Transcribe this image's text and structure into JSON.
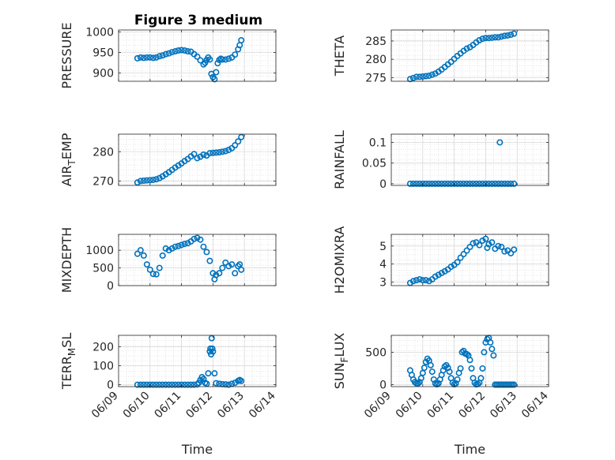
{
  "figure_title": "Figure 3 medium",
  "chart_data": [
    {
      "type": "scatter",
      "title": "Figure 3 medium",
      "ylabel": "PRESSURE",
      "ylabel_sub": "",
      "ylabel_tail": "",
      "xlim": [
        0,
        5
      ],
      "ylim": [
        880,
        1005
      ],
      "yticks": [
        900,
        950,
        1000
      ],
      "ytick_labels": [
        "900",
        "950",
        "1000"
      ],
      "xtick_labels": [],
      "xlabel": "",
      "grid": true,
      "series": [
        {
          "x": [
            0.6,
            0.7,
            0.8,
            0.9,
            1.0,
            1.1,
            1.2,
            1.3,
            1.4,
            1.5,
            1.6,
            1.7,
            1.8,
            1.9,
            2.0,
            2.1,
            2.2,
            2.3,
            2.4,
            2.5,
            2.6,
            2.7,
            2.75,
            2.8,
            2.85,
            2.9,
            2.95,
            3.0,
            3.05,
            3.1,
            3.15,
            3.2,
            3.25,
            3.3,
            3.4,
            3.5,
            3.6,
            3.7,
            3.8,
            3.85,
            3.9
          ],
          "y": [
            936,
            938,
            937,
            938,
            938,
            937,
            938,
            941,
            943,
            946,
            948,
            951,
            953,
            955,
            956,
            955,
            953,
            952,
            946,
            940,
            931,
            921,
            925,
            932,
            938,
            933,
            898,
            890,
            885,
            902,
            924,
            932,
            935,
            933,
            933,
            935,
            938,
            945,
            958,
            968,
            980
          ]
        }
      ]
    },
    {
      "type": "scatter",
      "ylabel": "THETA",
      "ylabel_sub": "",
      "ylabel_tail": "",
      "xlim": [
        0,
        5
      ],
      "ylim": [
        274,
        288
      ],
      "yticks": [
        275,
        280,
        285
      ],
      "ytick_labels": [
        "275",
        "280",
        "285"
      ],
      "xtick_labels": [],
      "xlabel": "",
      "grid": true,
      "series": [
        {
          "x": [
            0.6,
            0.7,
            0.8,
            0.9,
            1.0,
            1.1,
            1.2,
            1.3,
            1.4,
            1.5,
            1.6,
            1.7,
            1.8,
            1.9,
            2.0,
            2.1,
            2.2,
            2.3,
            2.4,
            2.5,
            2.6,
            2.7,
            2.8,
            2.9,
            3.0,
            3.1,
            3.2,
            3.3,
            3.4,
            3.5,
            3.6,
            3.7,
            3.8,
            3.9
          ],
          "y": [
            274.6,
            274.9,
            275.2,
            275.2,
            275.3,
            275.4,
            275.5,
            275.8,
            276.1,
            276.6,
            277.2,
            277.9,
            278.6,
            279.3,
            280.1,
            280.9,
            281.6,
            282.3,
            282.9,
            283.3,
            283.9,
            284.6,
            285.2,
            285.6,
            285.8,
            285.8,
            285.9,
            286.0,
            286.0,
            286.2,
            286.4,
            286.5,
            286.7,
            287.0
          ]
        }
      ]
    },
    {
      "type": "scatter",
      "ylabel": "AIR",
      "ylabel_sub": "T",
      "ylabel_tail": "EMP",
      "xlim": [
        0,
        5
      ],
      "ylim": [
        268.5,
        286
      ],
      "yticks": [
        270,
        280
      ],
      "ytick_labels": [
        "270",
        "280"
      ],
      "xtick_labels": [],
      "xlabel": "",
      "grid": true,
      "series": [
        {
          "x": [
            0.6,
            0.7,
            0.8,
            0.9,
            1.0,
            1.1,
            1.2,
            1.3,
            1.4,
            1.5,
            1.6,
            1.7,
            1.8,
            1.9,
            2.0,
            2.1,
            2.2,
            2.3,
            2.4,
            2.5,
            2.6,
            2.7,
            2.8,
            2.9,
            3.0,
            3.1,
            3.2,
            3.3,
            3.4,
            3.5,
            3.6,
            3.7,
            3.8,
            3.9
          ],
          "y": [
            269.5,
            270.0,
            270.1,
            270.2,
            270.3,
            270.4,
            270.6,
            271.0,
            271.6,
            272.3,
            273.0,
            273.8,
            274.6,
            275.3,
            276.0,
            276.8,
            277.5,
            278.4,
            279.2,
            277.8,
            278.3,
            279.0,
            278.7,
            279.5,
            279.6,
            279.7,
            279.8,
            280.0,
            280.2,
            280.6,
            281.2,
            282.2,
            283.5,
            285.0
          ]
        }
      ]
    },
    {
      "type": "scatter",
      "ylabel": "RAINFALL",
      "ylabel_sub": "",
      "ylabel_tail": "",
      "xlim": [
        0,
        5
      ],
      "ylim": [
        -0.004,
        0.12
      ],
      "yticks": [
        0,
        0.05,
        0.1
      ],
      "ytick_labels": [
        "0",
        "0.05",
        "0.1"
      ],
      "xtick_labels": [],
      "xlabel": "",
      "grid": true,
      "series": [
        {
          "x": [
            0.6,
            0.7,
            0.8,
            0.9,
            1.0,
            1.1,
            1.2,
            1.3,
            1.4,
            1.5,
            1.6,
            1.7,
            1.8,
            1.9,
            2.0,
            2.1,
            2.2,
            2.3,
            2.4,
            2.5,
            2.6,
            2.7,
            2.8,
            2.9,
            3.0,
            3.1,
            3.2,
            3.3,
            3.4,
            3.5,
            3.6,
            3.7,
            3.8,
            3.9,
            3.45
          ],
          "y": [
            0,
            0,
            0,
            0,
            0,
            0,
            0,
            0,
            0,
            0,
            0,
            0,
            0,
            0,
            0,
            0,
            0,
            0,
            0,
            0,
            0,
            0,
            0,
            0,
            0,
            0,
            0,
            0,
            0,
            0,
            0,
            0,
            0,
            0,
            0.1
          ]
        }
      ]
    },
    {
      "type": "scatter",
      "ylabel": "MIXDEPTH",
      "ylabel_sub": "",
      "ylabel_tail": "",
      "xlim": [
        0,
        5
      ],
      "ylim": [
        0,
        1450
      ],
      "yticks": [
        0,
        500,
        1000
      ],
      "ytick_labels": [
        "0",
        "500",
        "1000"
      ],
      "xtick_labels": [],
      "xlabel": "",
      "grid": true,
      "series": [
        {
          "x": [
            0.6,
            0.7,
            0.8,
            0.9,
            1.0,
            1.1,
            1.2,
            1.3,
            1.4,
            1.5,
            1.6,
            1.7,
            1.8,
            1.9,
            2.0,
            2.1,
            2.2,
            2.3,
            2.4,
            2.5,
            2.6,
            2.7,
            2.8,
            2.9,
            3.0,
            3.05,
            3.1,
            3.2,
            3.3,
            3.4,
            3.5,
            3.6,
            3.7,
            3.8,
            3.85,
            3.9
          ],
          "y": [
            900,
            1000,
            850,
            600,
            450,
            330,
            320,
            500,
            850,
            1050,
            1000,
            1050,
            1100,
            1120,
            1150,
            1180,
            1200,
            1250,
            1320,
            1350,
            1300,
            1100,
            950,
            700,
            350,
            180,
            300,
            350,
            500,
            650,
            550,
            600,
            350,
            550,
            600,
            450
          ]
        }
      ]
    },
    {
      "type": "scatter",
      "ylabel": "H2OMIXRA",
      "ylabel_sub": "",
      "ylabel_tail": "",
      "xlim": [
        0,
        5
      ],
      "ylim": [
        2.8,
        5.65
      ],
      "yticks": [
        3,
        4,
        5
      ],
      "ytick_labels": [
        "3",
        "4",
        "5"
      ],
      "xtick_labels": [],
      "xlabel": "",
      "grid": true,
      "series": [
        {
          "x": [
            0.6,
            0.7,
            0.8,
            0.9,
            1.0,
            1.1,
            1.2,
            1.3,
            1.4,
            1.5,
            1.6,
            1.7,
            1.8,
            1.9,
            2.0,
            2.1,
            2.2,
            2.3,
            2.4,
            2.5,
            2.6,
            2.7,
            2.8,
            2.9,
            3.0,
            3.05,
            3.1,
            3.2,
            3.3,
            3.4,
            3.5,
            3.6,
            3.7,
            3.8,
            3.9
          ],
          "y": [
            2.95,
            3.05,
            3.1,
            3.15,
            3.1,
            3.1,
            3.05,
            3.15,
            3.3,
            3.4,
            3.5,
            3.6,
            3.7,
            3.85,
            3.95,
            4.1,
            4.35,
            4.55,
            4.75,
            4.95,
            5.15,
            5.2,
            5.05,
            5.3,
            5.4,
            4.9,
            5.1,
            5.2,
            4.85,
            5.0,
            4.95,
            4.7,
            4.75,
            4.6,
            4.8
          ]
        }
      ]
    },
    {
      "type": "scatter",
      "ylabel": "TERR",
      "ylabel_sub": "M",
      "ylabel_tail": "SL",
      "xlim": [
        0,
        5
      ],
      "ylim": [
        -10,
        260
      ],
      "yticks": [
        0,
        100,
        200
      ],
      "ytick_labels": [
        "0",
        "100",
        "200"
      ],
      "xtick_labels": [
        "06/09",
        "06/10",
        "06/11",
        "06/12",
        "06/13",
        "06/14"
      ],
      "xlabel": "Time",
      "grid": true,
      "series": [
        {
          "x": [
            0.6,
            0.7,
            0.8,
            0.9,
            1.0,
            1.1,
            1.2,
            1.3,
            1.4,
            1.5,
            1.6,
            1.7,
            1.8,
            1.9,
            2.0,
            2.1,
            2.2,
            2.3,
            2.4,
            2.5,
            2.55,
            2.6,
            2.65,
            2.7,
            2.75,
            2.8,
            2.85,
            2.9,
            2.92,
            2.94,
            2.96,
            2.98,
            3.0,
            3.05,
            3.1,
            3.2,
            3.3,
            3.4,
            3.5,
            3.6,
            3.7,
            3.8,
            3.85,
            3.9
          ],
          "y": [
            0,
            0,
            0,
            0,
            0,
            0,
            0,
            0,
            0,
            0,
            0,
            0,
            0,
            0,
            0,
            0,
            0,
            0,
            0,
            2,
            10,
            25,
            40,
            30,
            10,
            5,
            60,
            175,
            190,
            160,
            245,
            190,
            175,
            60,
            8,
            5,
            3,
            2,
            0,
            5,
            10,
            20,
            25,
            20
          ]
        }
      ]
    },
    {
      "type": "scatter",
      "ylabel": "SUN",
      "ylabel_sub": "F",
      "ylabel_tail": "LUX",
      "xlim": [
        0,
        5
      ],
      "ylim": [
        -30,
        760
      ],
      "yticks": [
        0,
        500
      ],
      "ytick_labels": [
        "0",
        "500"
      ],
      "xtick_labels": [
        "06/09",
        "06/10",
        "06/11",
        "06/12",
        "06/13",
        "06/14"
      ],
      "xlabel": "Time",
      "grid": true,
      "series": [
        {
          "x": [
            0.6,
            0.65,
            0.7,
            0.75,
            0.8,
            0.85,
            0.9,
            0.95,
            1.0,
            1.05,
            1.1,
            1.15,
            1.2,
            1.25,
            1.3,
            1.35,
            1.4,
            1.45,
            1.5,
            1.55,
            1.6,
            1.65,
            1.7,
            1.75,
            1.8,
            1.85,
            1.9,
            1.95,
            2.0,
            2.05,
            2.1,
            2.15,
            2.2,
            2.25,
            2.3,
            2.35,
            2.4,
            2.45,
            2.5,
            2.55,
            2.6,
            2.65,
            2.7,
            2.75,
            2.8,
            2.85,
            2.9,
            2.95,
            3.0,
            3.05,
            3.1,
            3.15,
            3.2,
            3.25,
            3.3,
            3.35,
            3.4,
            3.45,
            3.5,
            3.55,
            3.6,
            3.65,
            3.7,
            3.75,
            3.8,
            3.85,
            3.9
          ],
          "y": [
            220,
            150,
            80,
            40,
            20,
            20,
            40,
            100,
            180,
            260,
            350,
            400,
            370,
            300,
            200,
            80,
            20,
            5,
            20,
            80,
            150,
            220,
            280,
            300,
            260,
            200,
            100,
            30,
            5,
            20,
            80,
            180,
            250,
            500,
            520,
            480,
            470,
            450,
            380,
            250,
            100,
            30,
            5,
            10,
            30,
            100,
            250,
            500,
            650,
            700,
            720,
            650,
            550,
            450,
            0,
            0,
            0,
            0,
            0,
            0,
            0,
            0,
            0,
            0,
            0,
            0,
            0
          ]
        }
      ]
    }
  ]
}
